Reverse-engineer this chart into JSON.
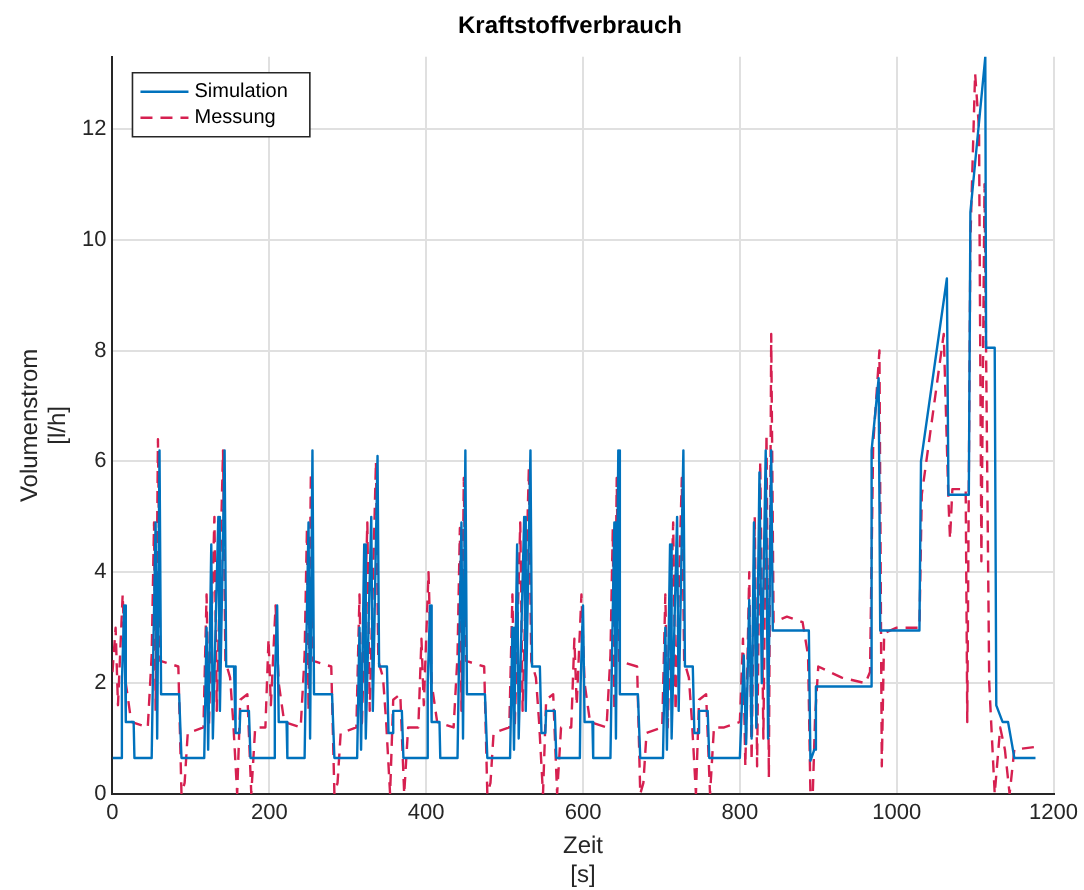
{
  "chart_data": {
    "type": "line",
    "title": "Kraftstoffverbrauch",
    "xlabel": "Zeit\n[s]",
    "ylabel": "Volumenstrom\n[l/h]",
    "xlim": [
      0,
      1200
    ],
    "xticks": [
      0,
      200,
      400,
      600,
      800,
      1000,
      1200
    ],
    "ylim": [
      0,
      13.3
    ],
    "yticks": [
      0,
      2,
      4,
      6,
      8,
      10,
      12
    ],
    "grid": true,
    "legend": "top left",
    "series": [
      {
        "name": "Simulation",
        "color": "#0072bd",
        "line_style": "solid",
        "x": [
          0,
          11,
          12,
          15,
          17,
          27,
          28,
          50,
          52,
          55,
          57,
          60,
          62,
          85,
          88,
          117,
          120,
          122,
          126,
          128,
          135,
          137,
          143,
          145,
          155,
          157,
          162,
          163,
          174,
          176,
          195,
          206,
          207,
          210,
          212,
          222,
          223,
          245,
          247,
          250,
          252,
          255,
          257,
          280,
          283,
          312,
          315,
          317,
          321,
          323,
          330,
          332,
          338,
          340,
          350,
          352,
          357,
          358,
          369,
          371,
          390,
          401,
          402,
          405,
          407,
          417,
          418,
          440,
          442,
          445,
          447,
          450,
          452,
          475,
          478,
          507,
          510,
          512,
          516,
          518,
          525,
          527,
          533,
          535,
          545,
          547,
          552,
          553,
          564,
          566,
          585,
          596,
          597,
          600,
          602,
          612,
          613,
          635,
          637,
          640,
          642,
          645,
          647,
          670,
          673,
          702,
          705,
          707,
          711,
          713,
          720,
          722,
          728,
          730,
          740,
          742,
          747,
          748,
          759,
          761,
          780,
          800,
          805,
          808,
          812,
          815,
          818,
          821,
          825,
          828,
          833,
          836,
          840,
          842,
          888,
          890,
          895,
          897,
          966,
          968,
          977,
          979,
          1029,
          1031,
          1064,
          1066,
          1092,
          1094,
          1113,
          1114,
          1125,
          1127,
          1135,
          1142,
          1147,
          1150,
          1177
        ],
        "values": [
          0.65,
          0.65,
          2.0,
          3.4,
          1.3,
          1.3,
          0.65,
          0.65,
          2.5,
          4.9,
          1.0,
          6.2,
          1.8,
          1.8,
          0.65,
          0.65,
          3.0,
          0.8,
          4.5,
          1.0,
          5.0,
          1.5,
          6.2,
          2.3,
          2.3,
          1.1,
          1.1,
          1.5,
          1.5,
          0.65,
          0.65,
          0.65,
          2.0,
          3.4,
          1.3,
          1.3,
          0.65,
          0.65,
          2.5,
          4.9,
          1.0,
          6.2,
          1.8,
          1.8,
          0.65,
          0.65,
          3.0,
          0.8,
          4.5,
          1.0,
          5.0,
          1.5,
          6.1,
          2.3,
          2.3,
          1.1,
          1.1,
          1.5,
          1.5,
          0.65,
          0.65,
          0.65,
          2.0,
          3.4,
          1.3,
          1.3,
          0.65,
          0.65,
          2.5,
          4.9,
          1.0,
          6.2,
          1.8,
          1.8,
          0.65,
          0.65,
          3.0,
          0.8,
          4.5,
          1.0,
          5.0,
          1.5,
          6.2,
          2.3,
          2.3,
          1.1,
          1.1,
          1.5,
          1.5,
          0.65,
          0.65,
          0.65,
          2.0,
          3.4,
          1.3,
          1.3,
          0.65,
          0.65,
          2.5,
          4.9,
          1.0,
          6.2,
          1.8,
          1.8,
          0.65,
          0.65,
          3.0,
          0.8,
          4.5,
          1.0,
          5.0,
          1.5,
          6.2,
          2.3,
          2.3,
          1.1,
          1.1,
          1.5,
          1.5,
          0.65,
          0.65,
          0.65,
          2.5,
          0.9,
          3.5,
          1.0,
          4.9,
          1.2,
          5.8,
          2.0,
          6.2,
          1.0,
          6.2,
          2.95,
          2.95,
          0.6,
          0.8,
          1.94,
          1.94,
          6.2,
          7.5,
          2.95,
          2.95,
          6.0,
          9.3,
          5.4,
          5.4,
          10.5,
          13.3,
          8.05,
          8.05,
          1.6,
          1.3,
          1.3,
          0.9,
          0.65,
          0.65
        ]
      },
      {
        "name": "Messung",
        "color": "#d62050",
        "line_style": "dashed",
        "x": [
          0,
          4,
          7,
          13,
          17,
          24,
          45,
          50,
          53,
          55,
          58,
          61,
          84,
          88,
          92,
          96,
          116,
          120,
          123,
          130,
          133,
          141,
          144,
          150,
          154,
          159,
          163,
          172,
          177,
          182,
          195,
          199,
          202,
          208,
          212,
          219,
          240,
          245,
          248,
          250,
          253,
          256,
          279,
          283,
          287,
          291,
          311,
          315,
          318,
          325,
          328,
          336,
          339,
          345,
          349,
          354,
          358,
          367,
          372,
          377,
          390,
          394,
          397,
          403,
          407,
          414,
          435,
          440,
          443,
          445,
          448,
          451,
          474,
          478,
          482,
          486,
          506,
          510,
          513,
          520,
          523,
          531,
          534,
          540,
          544,
          549,
          553,
          562,
          567,
          572,
          585,
          589,
          592,
          598,
          602,
          609,
          630,
          635,
          638,
          640,
          643,
          646,
          669,
          673,
          677,
          681,
          701,
          705,
          708,
          715,
          718,
          726,
          729,
          735,
          739,
          744,
          748,
          757,
          762,
          767,
          780,
          800,
          804,
          807,
          812,
          815,
          819,
          822,
          826,
          830,
          834,
          837,
          840,
          843,
          860,
          880,
          887,
          890,
          893,
          896,
          900,
          930,
          960,
          966,
          970,
          978,
          981,
          984,
          1000,
          1029,
          1032,
          1060,
          1066,
          1068,
          1071,
          1088,
          1090,
          1094,
          1100,
          1105,
          1108,
          1112,
          1118,
          1125,
          1132,
          1138,
          1144,
          1150,
          1177
        ],
        "values": [
          2.2,
          3.0,
          1.6,
          3.6,
          2.0,
          1.3,
          1.2,
          2.5,
          4.9,
          1.5,
          6.4,
          2.4,
          2.3,
          0.0,
          0.2,
          1.1,
          1.2,
          3.6,
          1.2,
          5.0,
          1.5,
          6.2,
          2.4,
          2.1,
          1.3,
          0.0,
          1.7,
          1.8,
          0.0,
          1.2,
          1.2,
          2.8,
          1.6,
          3.4,
          2.0,
          1.3,
          1.2,
          2.5,
          4.8,
          1.5,
          5.8,
          2.4,
          2.3,
          0.0,
          0.2,
          1.1,
          1.2,
          3.6,
          1.2,
          4.9,
          1.5,
          6.0,
          2.4,
          2.1,
          1.3,
          0.0,
          1.7,
          1.8,
          0.0,
          1.2,
          1.2,
          2.8,
          1.6,
          4.0,
          2.0,
          1.3,
          1.2,
          2.5,
          4.8,
          1.5,
          5.7,
          2.4,
          2.3,
          0.0,
          0.2,
          1.1,
          1.2,
          3.6,
          1.2,
          4.9,
          1.5,
          5.9,
          2.4,
          2.1,
          1.3,
          0.0,
          1.7,
          1.8,
          0.0,
          1.2,
          1.2,
          2.8,
          1.6,
          3.6,
          2.0,
          1.3,
          1.2,
          2.5,
          4.8,
          1.5,
          5.7,
          2.4,
          2.3,
          0.0,
          0.2,
          1.1,
          1.2,
          3.6,
          1.2,
          4.9,
          1.5,
          5.7,
          2.4,
          2.1,
          1.3,
          0.0,
          1.7,
          1.8,
          0.0,
          1.2,
          1.2,
          1.3,
          2.8,
          0.5,
          4.0,
          0.6,
          5.0,
          0.5,
          6.0,
          1.0,
          6.5,
          0.3,
          8.3,
          3.1,
          3.2,
          3.1,
          2.5,
          0.0,
          0.0,
          1.4,
          2.3,
          2.1,
          2.0,
          2.2,
          6.3,
          8.0,
          0.5,
          2.9,
          3.0,
          3.0,
          5.4,
          8.3,
          5.3,
          4.6,
          5.5,
          5.5,
          1.3,
          10.0,
          13.0,
          12.0,
          4.2,
          11.0,
          2.0,
          0.0,
          1.2,
          0.8,
          0.0,
          0.8,
          0.85
        ]
      }
    ]
  }
}
